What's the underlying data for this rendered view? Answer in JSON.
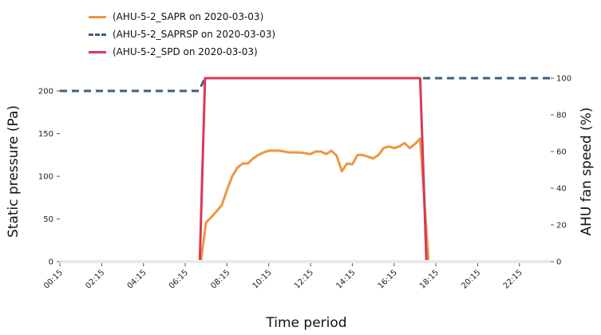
{
  "chart_data": {
    "type": "line",
    "xlabel": "Time period",
    "ylabel_left": "Static pressure (Pa)",
    "ylabel_right": "AHU fan speed (%)",
    "x_unit": "hours",
    "x_range": [
      0.25,
      23.75
    ],
    "ylim_left": [
      0,
      215
    ],
    "ylim_right": [
      0,
      100
    ],
    "left_ticks": [
      {
        "value": 0,
        "label": "0"
      },
      {
        "value": 50,
        "label": "50"
      },
      {
        "value": 100,
        "label": "100"
      },
      {
        "value": 150,
        "label": "150"
      },
      {
        "value": 200,
        "label": "200"
      }
    ],
    "right_ticks": [
      {
        "value": 0,
        "label": "0"
      },
      {
        "value": 20,
        "label": "20"
      },
      {
        "value": 40,
        "label": "40"
      },
      {
        "value": 60,
        "label": "60"
      },
      {
        "value": 80,
        "label": "80"
      },
      {
        "value": 100,
        "label": "100"
      }
    ],
    "x_ticks": [
      {
        "value": 0.25,
        "label": "00:15"
      },
      {
        "value": 2.25,
        "label": "02:15"
      },
      {
        "value": 4.25,
        "label": "04:15"
      },
      {
        "value": 6.25,
        "label": "06:15"
      },
      {
        "value": 8.25,
        "label": "08:15"
      },
      {
        "value": 10.25,
        "label": "10:15"
      },
      {
        "value": 12.25,
        "label": "12:15"
      },
      {
        "value": 14.25,
        "label": "14:15"
      },
      {
        "value": 16.25,
        "label": "16:15"
      },
      {
        "value": 18.25,
        "label": "18:15"
      },
      {
        "value": 20.25,
        "label": "20:15"
      },
      {
        "value": 22.25,
        "label": "22:15"
      }
    ],
    "legend_position": "top-left",
    "grid": false,
    "series": [
      {
        "name": "(AHU-5-2_SAPR on 2020-03-03)",
        "axis": "left",
        "color": "#f0953f",
        "dash": "solid",
        "points": [
          [
            0.25,
            0
          ],
          [
            7.0,
            0
          ],
          [
            7.25,
            46
          ],
          [
            7.5,
            52
          ],
          [
            7.75,
            59
          ],
          [
            8.0,
            66
          ],
          [
            8.25,
            84
          ],
          [
            8.5,
            100
          ],
          [
            8.75,
            110
          ],
          [
            9.0,
            115
          ],
          [
            9.25,
            115
          ],
          [
            9.5,
            121
          ],
          [
            9.75,
            125
          ],
          [
            10.0,
            128
          ],
          [
            10.25,
            130
          ],
          [
            10.5,
            130
          ],
          [
            10.75,
            130
          ],
          [
            11.0,
            129
          ],
          [
            11.25,
            128
          ],
          [
            11.5,
            128
          ],
          [
            11.75,
            128
          ],
          [
            12.0,
            127
          ],
          [
            12.25,
            126
          ],
          [
            12.5,
            129
          ],
          [
            12.75,
            129
          ],
          [
            13.0,
            126
          ],
          [
            13.25,
            130
          ],
          [
            13.5,
            124
          ],
          [
            13.75,
            106
          ],
          [
            14.0,
            115
          ],
          [
            14.25,
            114
          ],
          [
            14.5,
            125
          ],
          [
            14.75,
            125
          ],
          [
            15.0,
            123
          ],
          [
            15.25,
            121
          ],
          [
            15.5,
            125
          ],
          [
            15.75,
            133
          ],
          [
            16.0,
            135
          ],
          [
            16.25,
            133
          ],
          [
            16.5,
            135
          ],
          [
            16.75,
            139
          ],
          [
            17.0,
            133
          ],
          [
            17.25,
            138
          ],
          [
            17.5,
            144
          ],
          [
            17.9,
            0
          ],
          [
            23.75,
            0
          ]
        ]
      },
      {
        "name": "(AHU-5-2_SAPRSP on 2020-03-03)",
        "axis": "left",
        "color": "#3e5f7f",
        "dash": "dashed",
        "points": [
          [
            0.25,
            200
          ],
          [
            6.9,
            200
          ],
          [
            7.2,
            215
          ],
          [
            23.75,
            215
          ]
        ]
      },
      {
        "name": "(AHU-5-2_SPD on 2020-03-03)",
        "axis": "right",
        "color": "#d6395a",
        "dash": "solid",
        "points": [
          [
            0.25,
            0
          ],
          [
            6.95,
            0
          ],
          [
            7.2,
            100
          ],
          [
            17.5,
            100
          ],
          [
            17.8,
            0
          ],
          [
            23.75,
            0
          ]
        ]
      }
    ]
  }
}
